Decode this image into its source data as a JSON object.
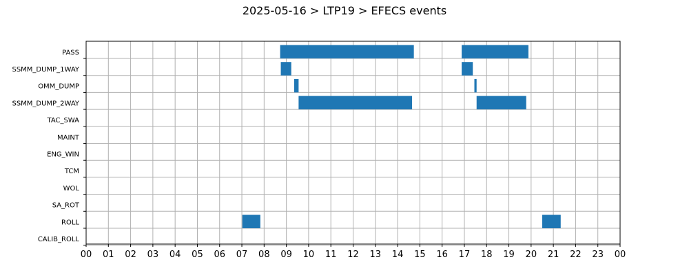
{
  "title": "2025-05-16 > LTP19 > EFECS events",
  "colors": {
    "bar": "#1f77b4",
    "grid": "#b0b0b0",
    "axis": "#000000"
  },
  "chart_data": {
    "type": "bar",
    "orientation": "horizontal-timeline",
    "title": "2025-05-16 > LTP19 > EFECS events",
    "xlim": [
      0,
      24
    ],
    "xtick_labels": [
      "00",
      "01",
      "02",
      "03",
      "04",
      "05",
      "06",
      "07",
      "08",
      "09",
      "10",
      "11",
      "12",
      "13",
      "14",
      "15",
      "16",
      "17",
      "18",
      "19",
      "20",
      "21",
      "22",
      "23",
      "00"
    ],
    "categories": [
      "PASS",
      "SSMM_DUMP_1WAY",
      "OMM_DUMP",
      "SSMM_DUMP_2WAY",
      "TAC_SWA",
      "MAINT",
      "ENG_WIN",
      "TCM",
      "WOL",
      "SA_ROT",
      "ROLL",
      "CALIB_ROLL"
    ],
    "grid": true,
    "events": [
      {
        "category": "PASS",
        "start": 8.72,
        "end": 14.73
      },
      {
        "category": "PASS",
        "start": 16.88,
        "end": 19.88
      },
      {
        "category": "SSMM_DUMP_1WAY",
        "start": 8.75,
        "end": 9.22
      },
      {
        "category": "SSMM_DUMP_1WAY",
        "start": 16.88,
        "end": 17.38
      },
      {
        "category": "OMM_DUMP",
        "start": 9.35,
        "end": 9.55
      },
      {
        "category": "OMM_DUMP",
        "start": 17.45,
        "end": 17.55
      },
      {
        "category": "SSMM_DUMP_2WAY",
        "start": 9.55,
        "end": 14.65
      },
      {
        "category": "SSMM_DUMP_2WAY",
        "start": 17.55,
        "end": 19.78
      },
      {
        "category": "ROLL",
        "start": 7.02,
        "end": 7.83
      },
      {
        "category": "ROLL",
        "start": 20.5,
        "end": 21.33
      }
    ]
  }
}
